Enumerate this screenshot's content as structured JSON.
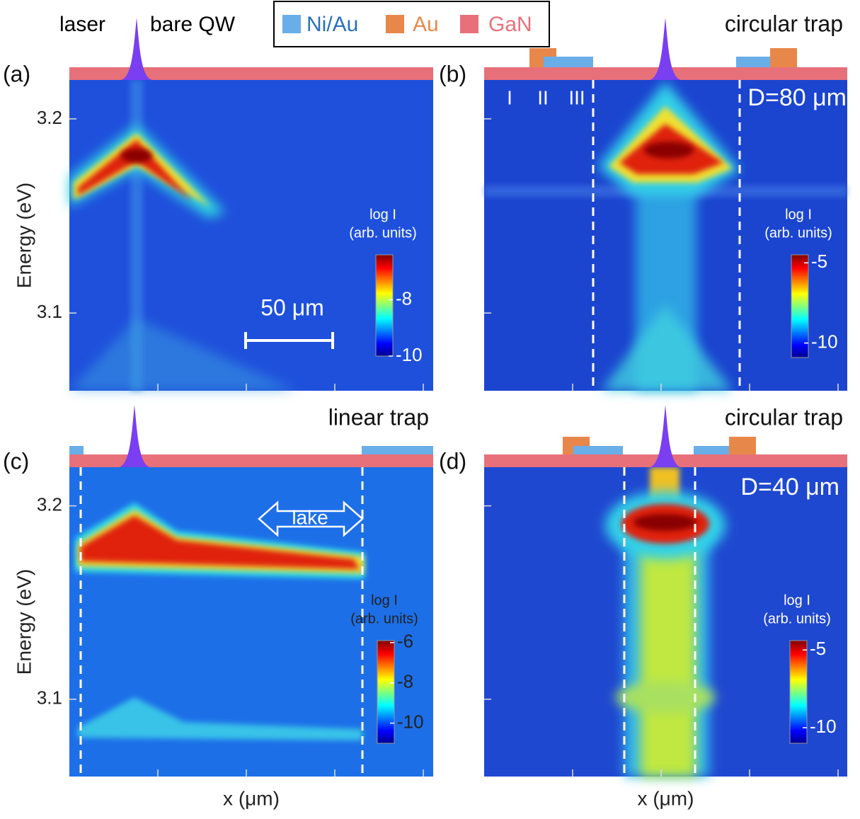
{
  "legend": [
    {
      "name": "Ni/Au",
      "color": "#6aaee8"
    },
    {
      "name": "Au",
      "color": "#e8874a"
    },
    {
      "name": "GaN",
      "color": "#e8707a"
    }
  ],
  "chart_data": [
    {
      "type": "heatmap",
      "label": "(a)",
      "annotations": [
        "laser",
        "bare QW",
        "50 μm"
      ],
      "y_label": "Energy (eV)",
      "ylim": [
        3.06,
        3.22
      ],
      "yticks": [
        3.1,
        3.2
      ],
      "colorbar": {
        "title": [
          "log I",
          "(arb. units)"
        ],
        "clim": [
          -10,
          -6.4
        ],
        "ticks": [
          -8,
          -10
        ]
      }
    },
    {
      "type": "heatmap",
      "label": "(b)",
      "title": "circular trap",
      "annotations": [
        "D=80 μm",
        "I",
        "II",
        "III"
      ],
      "ylim": [
        3.06,
        3.22
      ],
      "yticks": [
        3.1,
        3.2
      ],
      "colorbar": {
        "title": [
          "log I",
          "(arb. units)"
        ],
        "clim": [
          -10.9,
          -4.5
        ],
        "ticks": [
          -5,
          -10
        ]
      }
    },
    {
      "type": "heatmap",
      "label": "(c)",
      "title": "linear trap",
      "annotations": [
        "lake"
      ],
      "y_label": "Energy (eV)",
      "x_label": "x (μm)",
      "ylim": [
        3.06,
        3.22
      ],
      "yticks": [
        3.1,
        3.2
      ],
      "colorbar": {
        "title": [
          "log I",
          "(arb. units)"
        ],
        "clim": [
          -11,
          -5.9
        ],
        "ticks": [
          -6,
          -8,
          -10
        ]
      }
    },
    {
      "type": "heatmap",
      "label": "(d)",
      "title": "circular trap",
      "annotations": [
        "D=40 μm"
      ],
      "x_label": "x (μm)",
      "ylim": [
        3.06,
        3.22
      ],
      "yticks": [
        3.1,
        3.2
      ],
      "colorbar": {
        "title": [
          "log I",
          "(arb. units)"
        ],
        "clim": [
          -11,
          -4.4
        ],
        "ticks": [
          -5,
          -10
        ]
      }
    }
  ]
}
